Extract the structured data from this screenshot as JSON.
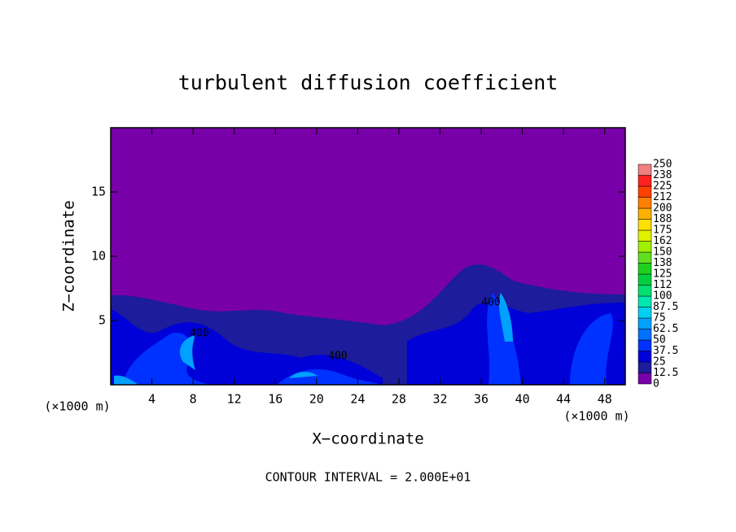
{
  "chart_data": {
    "type": "contour",
    "title": "turbulent diffusion coefficient",
    "xlabel": "X−coordinate",
    "ylabel": "Z−coordinate",
    "yunit": "(×1000 m)",
    "xunit": "(×1000 m)",
    "xlim": [
      0,
      50
    ],
    "ylim": [
      0,
      20
    ],
    "xticks": [
      4,
      8,
      12,
      16,
      20,
      24,
      28,
      32,
      36,
      40,
      44,
      48
    ],
    "yticks": [
      5,
      10,
      15
    ],
    "colorbar": {
      "levels": [
        0,
        12.5,
        25,
        37.5,
        50,
        62.5,
        75,
        87.5,
        100,
        112,
        125,
        138,
        150,
        162,
        175,
        188,
        200,
        212,
        225,
        238,
        250
      ],
      "colors": [
        "#7800a8",
        "#1c1c9c",
        "#0000d8",
        "#0032ff",
        "#0070ff",
        "#00a0ff",
        "#00d0f0",
        "#00e8b0",
        "#00e070",
        "#00d040",
        "#20d020",
        "#60e020",
        "#a0f000",
        "#e0f000",
        "#ffe000",
        "#ffb000",
        "#ff8000",
        "#ff4000",
        "#ff2020",
        "#f08080"
      ]
    },
    "contour_labels": [
      "400",
      "400",
      "400"
    ],
    "footnote": "CONTOUR INTERVAL = 2.000E+01"
  }
}
